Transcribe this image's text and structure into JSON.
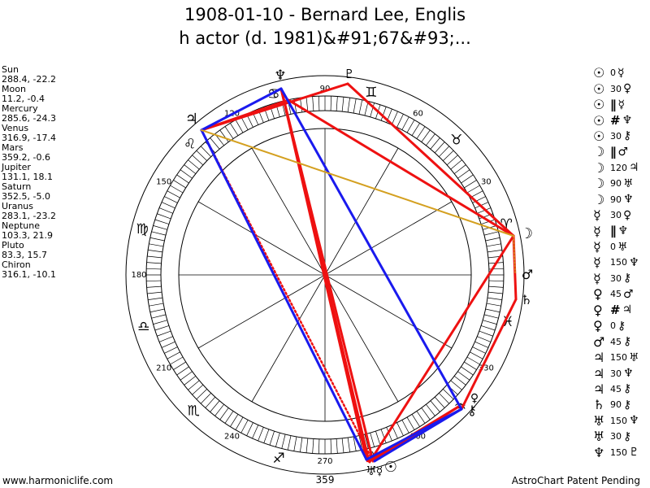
{
  "title_line1": "1908-01-10 - Bernard Lee, Englis",
  "title_line2": "h actor (d. 1981)&#91;67&#93;...",
  "planets": [
    {
      "name": "Sun",
      "coords": "288.4, -22.2"
    },
    {
      "name": "Moon",
      "coords": "11.2, -0.4"
    },
    {
      "name": "Mercury",
      "coords": "285.6, -24.3"
    },
    {
      "name": "Venus",
      "coords": "316.9, -17.4"
    },
    {
      "name": "Mars",
      "coords": "359.2, -0.6"
    },
    {
      "name": "Jupiter",
      "coords": "131.1, 18.1"
    },
    {
      "name": "Saturn",
      "coords": "352.5, -5.0"
    },
    {
      "name": "Uranus",
      "coords": "283.1, -23.2"
    },
    {
      "name": "Neptune",
      "coords": "103.3, 21.9"
    },
    {
      "name": "Pluto",
      "coords": "83.3, 15.7"
    },
    {
      "name": "Chiron",
      "coords": "316.1, -10.1"
    }
  ],
  "wheel": {
    "degree_labels": [
      "90",
      "60",
      "30",
      "120",
      "150",
      "180",
      "210",
      "240",
      "270",
      "300",
      "330"
    ],
    "bottom_degree": "359",
    "zodiac_signs": [
      "♈",
      "♉",
      "♊",
      "♋",
      "♌",
      "♍",
      "♎",
      "♏",
      "♐",
      "♑",
      "♒",
      "♓"
    ],
    "planet_glyphs": {
      "sun": "☉",
      "moon": "☽",
      "mercury": "☿",
      "venus": "♀",
      "mars": "♂",
      "jupiter": "♃",
      "saturn": "♄",
      "uranus": "♅",
      "neptune": "♆",
      "pluto": "♇",
      "chiron": "⚷"
    }
  },
  "aspects": [
    {
      "p1": "☉",
      "angle": "0",
      "p2": "☿"
    },
    {
      "p1": "☉",
      "angle": "30",
      "p2": "♀"
    },
    {
      "p1": "☉",
      "angle": "∥",
      "p2": "☿"
    },
    {
      "p1": "☉",
      "angle": "#",
      "p2": "♆"
    },
    {
      "p1": "☉",
      "angle": "30",
      "p2": "⚷"
    },
    {
      "p1": "☽",
      "angle": "∥",
      "p2": "♂"
    },
    {
      "p1": "☽",
      "angle": "120",
      "p2": "♃"
    },
    {
      "p1": "☽",
      "angle": "90",
      "p2": "♅"
    },
    {
      "p1": "☽",
      "angle": "90",
      "p2": "♆"
    },
    {
      "p1": "☿",
      "angle": "30",
      "p2": "♀"
    },
    {
      "p1": "☿",
      "angle": "∥",
      "p2": "♆"
    },
    {
      "p1": "☿",
      "angle": "0",
      "p2": "♅"
    },
    {
      "p1": "☿",
      "angle": "150",
      "p2": "♆"
    },
    {
      "p1": "☿",
      "angle": "30",
      "p2": "⚷"
    },
    {
      "p1": "♀",
      "angle": "45",
      "p2": "♂"
    },
    {
      "p1": "♀",
      "angle": "#",
      "p2": "♃"
    },
    {
      "p1": "♀",
      "angle": "0",
      "p2": "⚷"
    },
    {
      "p1": "♂",
      "angle": "45",
      "p2": "⚷"
    },
    {
      "p1": "♃",
      "angle": "150",
      "p2": "♅"
    },
    {
      "p1": "♃",
      "angle": "30",
      "p2": "♆"
    },
    {
      "p1": "♃",
      "angle": "45",
      "p2": "⚷"
    },
    {
      "p1": "♄",
      "angle": "90",
      "p2": "⚷"
    },
    {
      "p1": "♅",
      "angle": "150",
      "p2": "♆"
    },
    {
      "p1": "♅",
      "angle": "30",
      "p2": "⚷"
    },
    {
      "p1": "♆",
      "angle": "150",
      "p2": "♇"
    }
  ],
  "colors": {
    "red": "#ee1111",
    "blue": "#1a1aee",
    "gold": "#d4a020"
  },
  "footer": {
    "left": "www.harmoniclife.com",
    "right": "AstroChart Patent Pending"
  }
}
